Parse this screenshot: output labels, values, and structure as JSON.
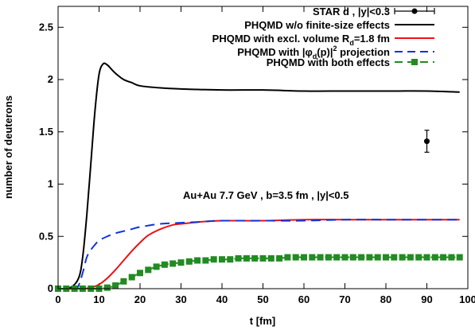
{
  "chart_data": {
    "type": "line",
    "xlabel": "t [fm]",
    "ylabel": "number of deuterons",
    "xlim": [
      0,
      100
    ],
    "ylim": [
      0,
      2.7
    ],
    "x_ticks": [
      0,
      10,
      20,
      30,
      40,
      50,
      60,
      70,
      80,
      90,
      100
    ],
    "y_ticks": [
      0,
      0.5,
      1,
      1.5,
      2,
      2.5
    ],
    "y_tick_labels": [
      "0",
      "0.5",
      "1",
      "1.5",
      "2",
      "2.5"
    ],
    "annotation": "Au+Au 7.7 GeV , b=3.5 fm , |y|<0.5",
    "legend_position": "top-right",
    "series": [
      {
        "name": "STAR d , |y|<0.3",
        "kind": "errorbar",
        "color": "#000000",
        "points": [
          {
            "x": 90,
            "y": 1.41,
            "yerr": 0.105
          }
        ]
      },
      {
        "name": "PHQMD w/o finite-size effects",
        "kind": "line",
        "color": "#000000",
        "dash": "solid",
        "x": [
          0,
          3,
          5,
          6,
          7,
          8,
          9,
          10,
          11,
          12,
          13,
          14,
          16,
          18,
          20,
          25,
          30,
          40,
          50,
          60,
          70,
          80,
          90,
          98
        ],
        "y": [
          0,
          0.01,
          0.1,
          0.3,
          0.7,
          1.2,
          1.7,
          2.05,
          2.15,
          2.14,
          2.1,
          2.06,
          2.0,
          1.97,
          1.94,
          1.92,
          1.91,
          1.9,
          1.9,
          1.89,
          1.89,
          1.89,
          1.89,
          1.88
        ]
      },
      {
        "name": "PHQMD with excl. volume R_d=1.8 fm",
        "kind": "line",
        "color": "#ee1111",
        "dash": "solid",
        "x": [
          0,
          6,
          8,
          10,
          12,
          14,
          16,
          18,
          20,
          22,
          25,
          28,
          30,
          35,
          40,
          50,
          60,
          70,
          80,
          90,
          98
        ],
        "y": [
          0,
          0,
          0.01,
          0.04,
          0.1,
          0.18,
          0.27,
          0.36,
          0.44,
          0.51,
          0.57,
          0.61,
          0.62,
          0.64,
          0.65,
          0.65,
          0.66,
          0.66,
          0.66,
          0.66,
          0.66
        ]
      },
      {
        "name": "PHQMD with |φ_d(p)|^2 projection",
        "kind": "line",
        "color": "#1133dd",
        "dash": "dashed",
        "x": [
          0,
          4,
          5,
          6,
          7,
          8,
          9,
          10,
          12,
          14,
          16,
          18,
          20,
          25,
          30,
          35,
          40,
          50,
          60,
          70,
          80,
          90,
          98
        ],
        "y": [
          0,
          0,
          0.03,
          0.15,
          0.3,
          0.37,
          0.42,
          0.46,
          0.5,
          0.53,
          0.55,
          0.57,
          0.59,
          0.62,
          0.63,
          0.64,
          0.65,
          0.65,
          0.65,
          0.66,
          0.66,
          0.66,
          0.66
        ]
      },
      {
        "name": "PHQMD with both effects",
        "kind": "line+markers",
        "color": "#228b22",
        "dash": "dashed",
        "x": [
          0,
          2,
          4,
          6,
          8,
          10,
          12,
          14,
          16,
          18,
          20,
          22,
          24,
          26,
          28,
          30,
          32,
          34,
          36,
          38,
          40,
          42,
          44,
          46,
          48,
          50,
          52,
          54,
          56,
          58,
          60,
          62,
          64,
          66,
          68,
          70,
          72,
          74,
          76,
          78,
          80,
          82,
          84,
          86,
          88,
          90,
          92,
          94,
          96,
          98
        ],
        "y": [
          0,
          0,
          0,
          0,
          0,
          0,
          0.01,
          0.03,
          0.07,
          0.11,
          0.15,
          0.18,
          0.21,
          0.23,
          0.24,
          0.25,
          0.26,
          0.27,
          0.27,
          0.28,
          0.28,
          0.28,
          0.29,
          0.29,
          0.29,
          0.29,
          0.29,
          0.29,
          0.3,
          0.3,
          0.3,
          0.3,
          0.3,
          0.3,
          0.3,
          0.3,
          0.3,
          0.3,
          0.3,
          0.3,
          0.3,
          0.3,
          0.3,
          0.3,
          0.3,
          0.3,
          0.3,
          0.3,
          0.3,
          0.3
        ]
      }
    ]
  },
  "legend": {
    "star": "STAR d , |y|<0.3",
    "no_fs": "PHQMD w/o finite-size effects",
    "excl_a": "PHQMD with excl. volume R",
    "excl_sub": "d",
    "excl_b": "=1.8 fm",
    "proj_a": "PHQMD with |φ",
    "proj_sub": "d",
    "proj_b": "(p)|",
    "proj_sup": "2",
    "proj_c": " projection",
    "both": "PHQMD with both effects"
  }
}
